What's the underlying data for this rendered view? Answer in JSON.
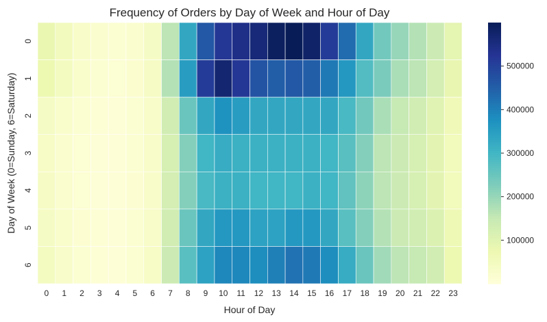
{
  "chart_data": {
    "type": "heatmap",
    "title": "Frequency of Orders by Day of Week and Hour of Day",
    "xlabel": "Hour of Day",
    "ylabel": "Day of Week (0=Sunday, 6=Saturday)",
    "x_categories": [
      "0",
      "1",
      "2",
      "3",
      "4",
      "5",
      "6",
      "7",
      "8",
      "9",
      "10",
      "11",
      "12",
      "13",
      "14",
      "15",
      "16",
      "17",
      "18",
      "19",
      "20",
      "21",
      "22",
      "23"
    ],
    "y_categories": [
      "0",
      "1",
      "2",
      "3",
      "4",
      "5",
      "6"
    ],
    "values": [
      [
        80000,
        50000,
        30000,
        20000,
        15000,
        20000,
        40000,
        160000,
        330000,
        460000,
        520000,
        540000,
        560000,
        590000,
        600000,
        580000,
        510000,
        430000,
        330000,
        240000,
        200000,
        170000,
        140000,
        90000
      ],
      [
        75000,
        45000,
        25000,
        15000,
        12000,
        18000,
        38000,
        170000,
        350000,
        510000,
        570000,
        520000,
        470000,
        450000,
        460000,
        450000,
        410000,
        360000,
        280000,
        230000,
        180000,
        160000,
        125000,
        85000
      ],
      [
        40000,
        25000,
        15000,
        10000,
        8000,
        15000,
        30000,
        130000,
        250000,
        330000,
        370000,
        350000,
        330000,
        330000,
        330000,
        330000,
        330000,
        290000,
        240000,
        180000,
        150000,
        130000,
        100000,
        60000
      ],
      [
        35000,
        20000,
        12000,
        8000,
        6000,
        15000,
        30000,
        120000,
        220000,
        300000,
        320000,
        310000,
        310000,
        310000,
        310000,
        310000,
        300000,
        270000,
        220000,
        160000,
        140000,
        120000,
        95000,
        55000
      ],
      [
        38000,
        22000,
        12000,
        8000,
        6000,
        14000,
        30000,
        125000,
        220000,
        290000,
        310000,
        310000,
        300000,
        300000,
        300000,
        310000,
        300000,
        260000,
        210000,
        160000,
        140000,
        120000,
        95000,
        55000
      ],
      [
        40000,
        25000,
        14000,
        9000,
        7000,
        15000,
        32000,
        130000,
        250000,
        330000,
        360000,
        360000,
        340000,
        340000,
        360000,
        360000,
        330000,
        270000,
        220000,
        170000,
        140000,
        130000,
        110000,
        65000
      ],
      [
        45000,
        28000,
        15000,
        10000,
        8000,
        16000,
        35000,
        140000,
        270000,
        340000,
        390000,
        390000,
        380000,
        400000,
        420000,
        410000,
        380000,
        320000,
        250000,
        190000,
        160000,
        150000,
        130000,
        75000
      ]
    ],
    "colorbar": {
      "vmin": 0,
      "vmax": 600000,
      "ticks": [
        100000,
        200000,
        300000,
        400000,
        500000
      ],
      "tick_labels": [
        "100000",
        "200000",
        "300000",
        "400000",
        "500000"
      ],
      "colormap": "YlGnBu",
      "colors": [
        "#ffffd9",
        "#edf8b1",
        "#c7e9b4",
        "#7fcdbb",
        "#41b6c4",
        "#1d91c0",
        "#225ea8",
        "#253494",
        "#081d58"
      ]
    },
    "grid": true
  }
}
